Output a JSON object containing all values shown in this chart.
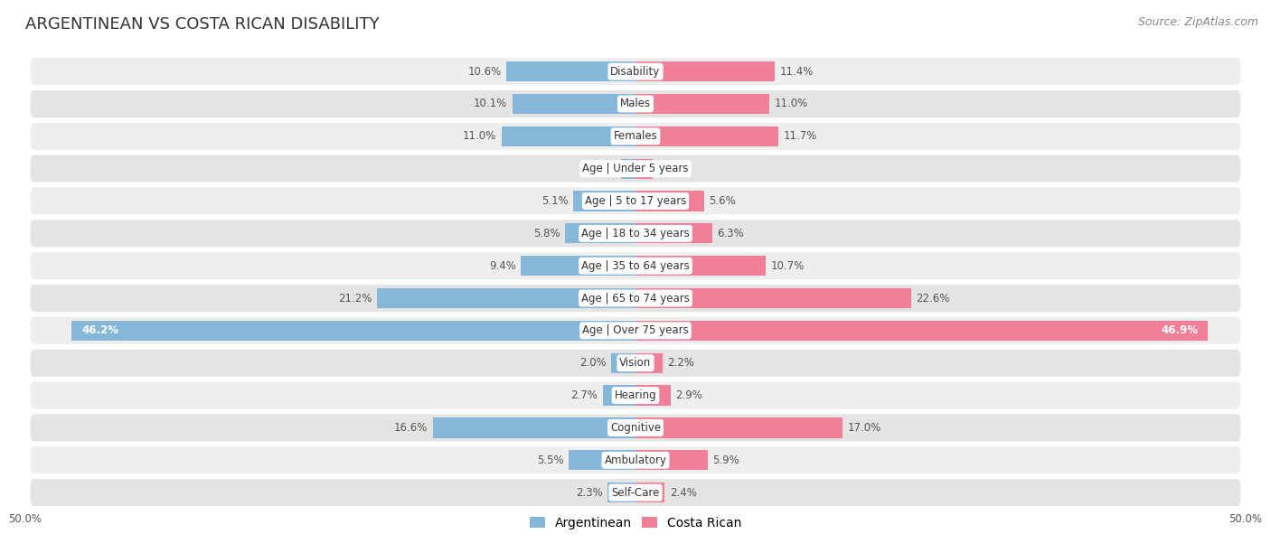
{
  "title": "ARGENTINEAN VS COSTA RICAN DISABILITY",
  "source": "Source: ZipAtlas.com",
  "categories": [
    "Disability",
    "Males",
    "Females",
    "Age | Under 5 years",
    "Age | 5 to 17 years",
    "Age | 18 to 34 years",
    "Age | 35 to 64 years",
    "Age | 65 to 74 years",
    "Age | Over 75 years",
    "Vision",
    "Hearing",
    "Cognitive",
    "Ambulatory",
    "Self-Care"
  ],
  "argentinean": [
    10.6,
    10.1,
    11.0,
    1.2,
    5.1,
    5.8,
    9.4,
    21.2,
    46.2,
    2.0,
    2.7,
    16.6,
    5.5,
    2.3
  ],
  "costa_rican": [
    11.4,
    11.0,
    11.7,
    1.4,
    5.6,
    6.3,
    10.7,
    22.6,
    46.9,
    2.2,
    2.9,
    17.0,
    5.9,
    2.4
  ],
  "blue_color": "#85b8d8",
  "pink_color": "#f08098",
  "blue_light": "#aecde6",
  "pink_light": "#f5b8c8",
  "row_bg": "#eeeeee",
  "row_bg2": "#e4e4e4",
  "xlim": 50.0,
  "bar_height": 0.62,
  "title_fontsize": 13,
  "label_fontsize": 8.5,
  "value_fontsize": 8.5,
  "legend_fontsize": 10,
  "source_fontsize": 9
}
